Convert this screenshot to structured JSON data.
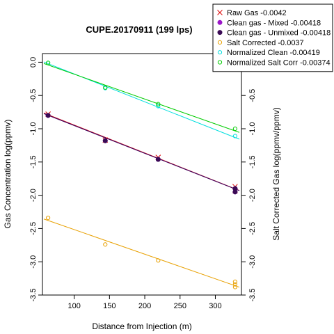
{
  "chart_data": {
    "type": "scatter",
    "title": "CUPE.20170911 (199 lps)",
    "xlabel": "Distance from Injection (m)",
    "ylabel_left": "Gas Concentration log(ppmv)",
    "ylabel_right": "Salt Corrected Gas log(ppmv/ppmv)",
    "xlim": [
      55,
      337
    ],
    "ylim": [
      -3.5,
      0.13
    ],
    "x_ticks": [
      100,
      150,
      200,
      250,
      300
    ],
    "y_ticks": [
      0,
      -0.5,
      -1,
      -1.5,
      -2,
      -2.5,
      -3,
      -3.5
    ],
    "y_tick_labels": [
      "0.0",
      "-0.5",
      "-1.0",
      "-1.5",
      "-2.0",
      "-2.5",
      "-3.0",
      "-3.5"
    ],
    "right_ticks": [
      -0.5,
      -1,
      -1.5,
      -2,
      -2.5,
      -3,
      -3.5
    ],
    "right_tick_labels": [
      "-0.5",
      "-1.0",
      "-1.5",
      "-2.0",
      "-2.5",
      "-3.0",
      "-3.5"
    ],
    "legend_position": "top-right",
    "series": [
      {
        "name": "Raw Gas -0.0042",
        "color": "#dd0000",
        "marker": "x",
        "points": [
          [
            63,
            -0.78
          ],
          [
            144,
            -1.17
          ],
          [
            219,
            -1.43
          ],
          [
            328,
            -1.87
          ],
          [
            328,
            -1.93
          ]
        ],
        "fit": {
          "slope": -0.0042,
          "x_range": [
            57,
            334
          ],
          "y_at_start": -0.764
        }
      },
      {
        "name": "Clean gas - Mixed -0.00418",
        "color": "#9b17c8",
        "marker": "dot",
        "points": [
          [
            63,
            -0.8
          ],
          [
            144,
            -1.18
          ],
          [
            219,
            -1.46
          ],
          [
            328,
            -1.9
          ],
          [
            328,
            -1.95
          ]
        ],
        "fit": {
          "slope": -0.00418,
          "x_range": [
            57,
            334
          ],
          "y_at_start": -0.772
        }
      },
      {
        "name": "Clean gas - Unmixed -0.00418",
        "color": "#3a0a55",
        "marker": "dot",
        "points": [
          [
            63,
            -0.8
          ],
          [
            144,
            -1.18
          ],
          [
            219,
            -1.46
          ],
          [
            328,
            -1.9
          ],
          [
            328,
            -1.95
          ]
        ],
        "fit": {
          "slope": -0.00418,
          "x_range": [
            57,
            334
          ],
          "y_at_start": -0.772
        }
      },
      {
        "name": "Salt Corrected -0.0037",
        "color": "#e8a000",
        "marker": "circle",
        "points": [
          [
            63,
            -2.34
          ],
          [
            144,
            -2.74
          ],
          [
            219,
            -2.98
          ],
          [
            328,
            -3.3
          ],
          [
            328,
            -3.34
          ],
          [
            328,
            -3.38
          ]
        ],
        "fit": {
          "slope": -0.0037,
          "x_range": [
            57,
            334
          ],
          "y_at_start": -2.357
        }
      },
      {
        "name": "Normalized Clean -0.00419",
        "color": "#00dede",
        "marker": "circle",
        "points": [
          [
            63,
            -0.01
          ],
          [
            144,
            -0.39
          ],
          [
            219,
            -0.66
          ],
          [
            328,
            -1.11
          ]
        ],
        "fit": {
          "slope": -0.00419,
          "x_range": [
            57,
            334
          ],
          "y_at_start": 0.004
        }
      },
      {
        "name": "Normalized Salt Corr -0.00374",
        "color": "#00cc00",
        "marker": "circle",
        "points": [
          [
            63,
            -0.01
          ],
          [
            144,
            -0.38
          ],
          [
            219,
            -0.63
          ],
          [
            328,
            -1.0
          ]
        ],
        "fit": {
          "slope": -0.00374,
          "x_range": [
            57,
            334
          ],
          "y_at_start": -0.019
        }
      }
    ]
  }
}
